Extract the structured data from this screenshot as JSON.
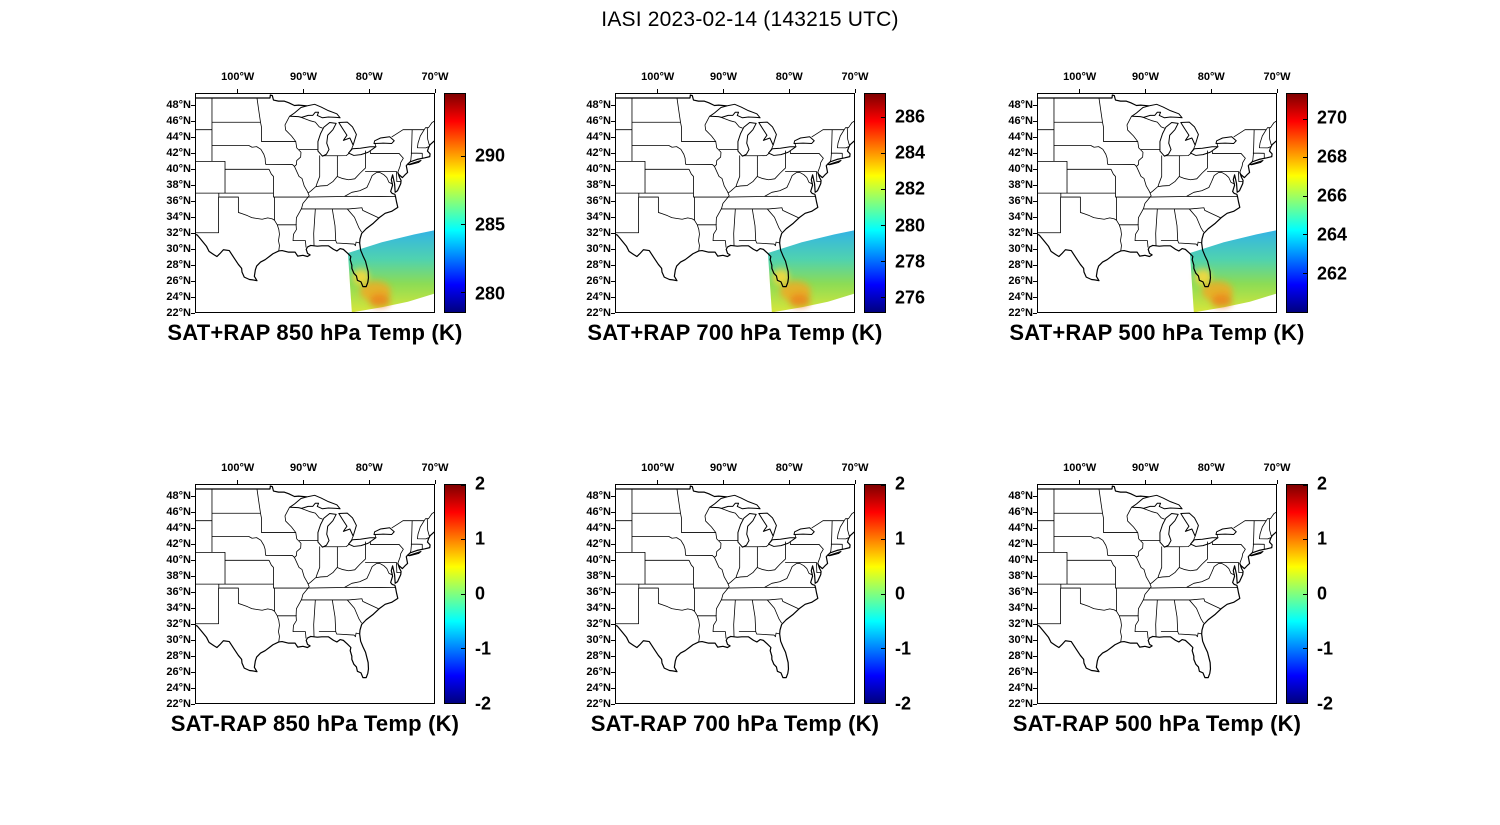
{
  "figure": {
    "title": "IASI 2023-02-14 (143215 UTC)",
    "background": "#ffffff"
  },
  "axes": {
    "lon_tick_labels": [
      "100°W",
      "90°W",
      "80°W",
      "70°W"
    ],
    "lon_tick_values": [
      -100,
      -90,
      -80,
      -70
    ],
    "lat_tick_labels": [
      "48°N",
      "46°N",
      "44°N",
      "42°N",
      "40°N",
      "38°N",
      "36°N",
      "34°N",
      "32°N",
      "30°N",
      "28°N",
      "26°N",
      "24°N",
      "22°N"
    ],
    "lat_tick_values": [
      48,
      46,
      44,
      42,
      40,
      38,
      36,
      34,
      32,
      30,
      28,
      26,
      24,
      22
    ],
    "lon_range": [
      -106.5,
      -70
    ],
    "lat_range": [
      22,
      49.5
    ]
  },
  "colormap": {
    "name": "jet",
    "css_stops": [
      "#7f0000 0%",
      "#ff0000 12.5%",
      "#ffff00 37.5%",
      "#00ffff 62.5%",
      "#0000ff 87.5%",
      "#00007f 100%"
    ]
  },
  "panels": [
    {
      "id": "sat-plus-rap-850",
      "title": "SAT+RAP 850 hPa Temp (K)",
      "colorbar": {
        "ticks": [
          290,
          285,
          280
        ],
        "range": [
          278.6,
          294.6
        ]
      },
      "swath": true
    },
    {
      "id": "sat-plus-rap-700",
      "title": "SAT+RAP 700 hPa Temp (K)",
      "colorbar": {
        "ticks": [
          286,
          284,
          282,
          280,
          278,
          276
        ],
        "range": [
          275.2,
          287.3
        ]
      },
      "swath": true
    },
    {
      "id": "sat-plus-rap-500",
      "title": "SAT+RAP 500 hPa Temp (K)",
      "colorbar": {
        "ticks": [
          270,
          268,
          266,
          264,
          262
        ],
        "range": [
          260.0,
          271.3
        ]
      },
      "swath": true
    },
    {
      "id": "sat-minus-rap-850",
      "title": "SAT-RAP 850 hPa Temp (K)",
      "colorbar": {
        "ticks": [
          2,
          1,
          0,
          -1,
          -2
        ],
        "range": [
          -2,
          2
        ]
      },
      "swath": false
    },
    {
      "id": "sat-minus-rap-700",
      "title": "SAT-RAP 700 hPa Temp (K)",
      "colorbar": {
        "ticks": [
          2,
          1,
          0,
          -1,
          -2
        ],
        "range": [
          -2,
          2
        ]
      },
      "swath": false
    },
    {
      "id": "sat-minus-rap-500",
      "title": "SAT-RAP 500 hPa Temp (K)",
      "colorbar": {
        "ticks": [
          2,
          1,
          0,
          -1,
          -2
        ],
        "range": [
          -2,
          2
        ]
      },
      "swath": false
    }
  ],
  "chart_data": [
    {
      "type": "heatmap",
      "title": "SAT+RAP 850 hPa Temp (K)",
      "basemap": "US state boundaries (eastern CONUS)",
      "lon_range": [
        -106.5,
        -70
      ],
      "lat_range": [
        22,
        49.5
      ],
      "lon_ticks": [
        -100,
        -90,
        -80,
        -70
      ],
      "lat_ticks": [
        48,
        46,
        44,
        42,
        40,
        38,
        36,
        34,
        32,
        30,
        28,
        26,
        24,
        22
      ],
      "colormap": "jet",
      "colorbar_ticks": [
        290,
        285,
        280
      ],
      "colorbar_range": [
        278.6,
        294.6
      ],
      "data": "IASI satellite swath over SE US coast, Florida and western Atlantic (lat ~22-32N, lon ~84-70W); cyan ~282-284 K along the northern edge, green ~285-287 K mid-swath, yellow-green ~287-289 K to the south, isolated orange ~290-292 K cells near South Florida and the Bahamas"
    },
    {
      "type": "heatmap",
      "title": "SAT+RAP 700 hPa Temp (K)",
      "basemap": "US state boundaries (eastern CONUS)",
      "lon_range": [
        -106.5,
        -70
      ],
      "lat_range": [
        22,
        49.5
      ],
      "lon_ticks": [
        -100,
        -90,
        -80,
        -70
      ],
      "lat_ticks": [
        48,
        46,
        44,
        42,
        40,
        38,
        36,
        34,
        32,
        30,
        28,
        26,
        24,
        22
      ],
      "colormap": "jet",
      "colorbar_ticks": [
        286,
        284,
        282,
        280,
        278,
        276
      ],
      "colorbar_range": [
        275.2,
        287.3
      ],
      "data": "Same IASI swath footprint; cyan ~279-281 K north edge grading to green ~281-283 K and yellow-green ~283-285 K toward the southern edge"
    },
    {
      "type": "heatmap",
      "title": "SAT+RAP 500 hPa Temp (K)",
      "basemap": "US state boundaries (eastern CONUS)",
      "lon_range": [
        -106.5,
        -70
      ],
      "lat_range": [
        22,
        49.5
      ],
      "lon_ticks": [
        -100,
        -90,
        -80,
        -70
      ],
      "lat_ticks": [
        48,
        46,
        44,
        42,
        40,
        38,
        36,
        34,
        32,
        30,
        28,
        26,
        24,
        22
      ],
      "colormap": "jet",
      "colorbar_ticks": [
        270,
        268,
        266,
        264,
        262
      ],
      "colorbar_range": [
        260.0,
        271.3
      ],
      "data": "Same IASI swath footprint; cyan ~263-265 K north edge grading to green/yellow-green ~265-267 K southward"
    },
    {
      "type": "heatmap",
      "title": "SAT-RAP 850 hPa Temp (K)",
      "basemap": "US state boundaries (eastern CONUS)",
      "lon_range": [
        -106.5,
        -70
      ],
      "lat_range": [
        22,
        49.5
      ],
      "lon_ticks": [
        -100,
        -90,
        -80,
        -70
      ],
      "lat_ticks": [
        48,
        46,
        44,
        42,
        40,
        38,
        36,
        34,
        32,
        30,
        28,
        26,
        24,
        22
      ],
      "colormap": "jet",
      "colorbar_ticks": [
        2,
        1,
        0,
        -1,
        -2
      ],
      "colorbar_range": [
        -2,
        2
      ],
      "data": "No visible difference field plotted (empty basemap)"
    },
    {
      "type": "heatmap",
      "title": "SAT-RAP 700 hPa Temp (K)",
      "basemap": "US state boundaries (eastern CONUS)",
      "lon_range": [
        -106.5,
        -70
      ],
      "lat_range": [
        22,
        49.5
      ],
      "lon_ticks": [
        -100,
        -90,
        -80,
        -70
      ],
      "lat_ticks": [
        48,
        46,
        44,
        42,
        40,
        38,
        36,
        34,
        32,
        30,
        28,
        26,
        24,
        22
      ],
      "colormap": "jet",
      "colorbar_ticks": [
        2,
        1,
        0,
        -1,
        -2
      ],
      "colorbar_range": [
        -2,
        2
      ],
      "data": "No visible difference field plotted (empty basemap)"
    },
    {
      "type": "heatmap",
      "title": "SAT-RAP 500 hPa Temp (K)",
      "basemap": "US state boundaries (eastern CONUS)",
      "lon_range": [
        -106.5,
        -70
      ],
      "lat_range": [
        22,
        49.5
      ],
      "lon_ticks": [
        -100,
        -90,
        -80,
        -70
      ],
      "lat_ticks": [
        48,
        46,
        44,
        42,
        40,
        38,
        36,
        34,
        32,
        30,
        28,
        26,
        24,
        22
      ],
      "colormap": "jet",
      "colorbar_ticks": [
        2,
        1,
        0,
        -1,
        -2
      ],
      "colorbar_range": [
        -2,
        2
      ],
      "data": "No visible difference field plotted (empty basemap)"
    }
  ]
}
